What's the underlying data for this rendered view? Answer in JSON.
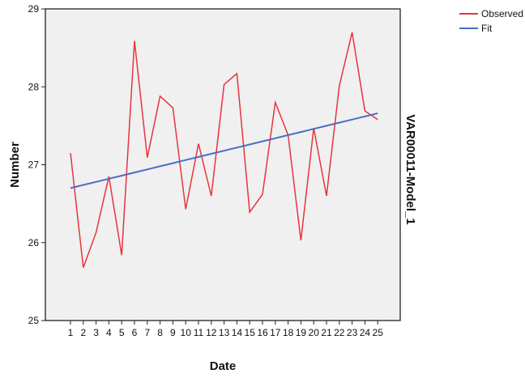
{
  "chart_data": {
    "type": "line",
    "title": "",
    "xlabel": "Date",
    "ylabel": "Number",
    "side_label": "VAR00011-Model_1",
    "categories": [
      "1",
      "2",
      "3",
      "4",
      "5",
      "6",
      "7",
      "8",
      "9",
      "10",
      "11",
      "12",
      "13",
      "14",
      "15",
      "16",
      "17",
      "18",
      "19",
      "20",
      "21",
      "22",
      "23",
      "24",
      "25"
    ],
    "ylim": [
      25,
      29
    ],
    "yticks": [
      "25",
      "26",
      "27",
      "28",
      "29"
    ],
    "grid": false,
    "legend_position": "top-right",
    "series": [
      {
        "name": "Observed",
        "color": "#e8343c",
        "values": [
          27.15,
          25.68,
          26.13,
          26.85,
          25.84,
          28.59,
          27.09,
          27.88,
          27.73,
          26.43,
          27.27,
          26.6,
          28.03,
          28.17,
          26.39,
          26.62,
          27.8,
          27.38,
          26.03,
          27.47,
          26.6,
          28.01,
          28.7,
          27.69,
          27.58
        ]
      },
      {
        "name": "Fit",
        "color": "#4a6ec0",
        "values": [
          26.7,
          26.74,
          26.78,
          26.82,
          26.86,
          26.9,
          26.94,
          26.98,
          27.02,
          27.06,
          27.1,
          27.14,
          27.18,
          27.22,
          27.26,
          27.3,
          27.34,
          27.38,
          27.42,
          27.46,
          27.5,
          27.54,
          27.58,
          27.62,
          27.66
        ]
      }
    ],
    "plot_background": "#f0f0f0",
    "axis_color": "#222222"
  }
}
